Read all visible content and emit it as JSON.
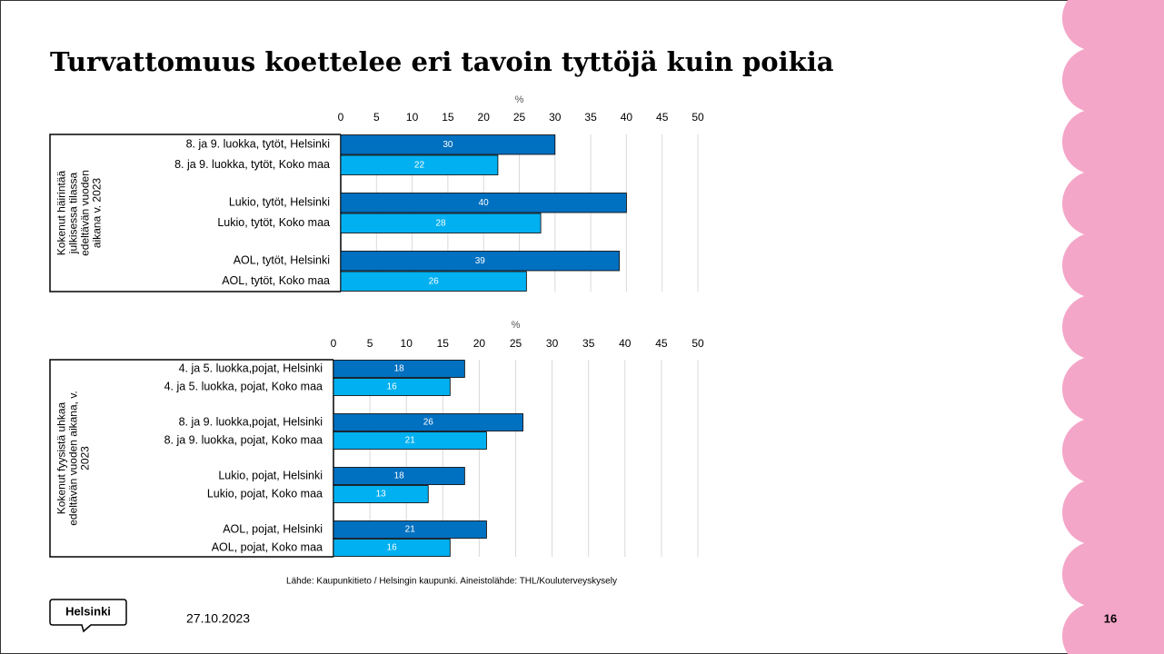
{
  "slide": {
    "title": "Turvattomuus koettelee eri tavoin tyttöjä kuin poikia",
    "source": "Lähde: Kaupunkitieto / Helsingin kaupunki. Aineistolähde: THL/Kouluterveyskysely",
    "logo": "Helsinki",
    "date": "27.10.2023",
    "page": "16"
  },
  "chart_data": [
    {
      "type": "bar",
      "orientation": "horizontal",
      "x_label": "%",
      "group_label": [
        "Kokenut häirintää",
        "julkisessa tilassa",
        "edeltävän vuoden",
        "aikana v. 2023"
      ],
      "categories": [
        "8. ja 9. luokka, tytöt, Helsinki",
        "8. ja 9. luokka, tytöt, Koko maa",
        "Lukio, tytöt, Helsinki",
        "Lukio, tytöt, Koko maa",
        "AOL, tytöt, Helsinki",
        "AOL, tytöt, Koko maa"
      ],
      "values": [
        30,
        22,
        40,
        28,
        39,
        26
      ],
      "colors": [
        "#0070c0",
        "#00b0f0",
        "#0070c0",
        "#00b0f0",
        "#0070c0",
        "#00b0f0"
      ],
      "xlim": [
        0,
        50
      ],
      "xticks": [
        0,
        5,
        10,
        15,
        20,
        25,
        30,
        35,
        40,
        45,
        50
      ],
      "grid": true
    },
    {
      "type": "bar",
      "orientation": "horizontal",
      "x_label": "%",
      "group_label": [
        "Kokenut fyysistä uhkaa",
        "edeltävän vuoden aikana, v.",
        "2023"
      ],
      "categories": [
        "4. ja 5. luokka,pojat, Helsinki",
        "4. ja 5. luokka, pojat, Koko maa",
        "8. ja 9. luokka,pojat, Helsinki",
        "8. ja 9. luokka, pojat, Koko maa",
        "Lukio, pojat, Helsinki",
        "Lukio, pojat, Koko maa",
        "AOL, pojat, Helsinki",
        "AOL, pojat, Koko maa"
      ],
      "values": [
        18,
        16,
        26,
        21,
        18,
        13,
        21,
        16
      ],
      "colors": [
        "#0070c0",
        "#00b0f0",
        "#0070c0",
        "#00b0f0",
        "#0070c0",
        "#00b0f0",
        "#0070c0",
        "#00b0f0"
      ],
      "xlim": [
        0,
        50
      ],
      "xticks": [
        0,
        5,
        10,
        15,
        20,
        25,
        30,
        35,
        40,
        45,
        50
      ],
      "grid": true
    }
  ]
}
